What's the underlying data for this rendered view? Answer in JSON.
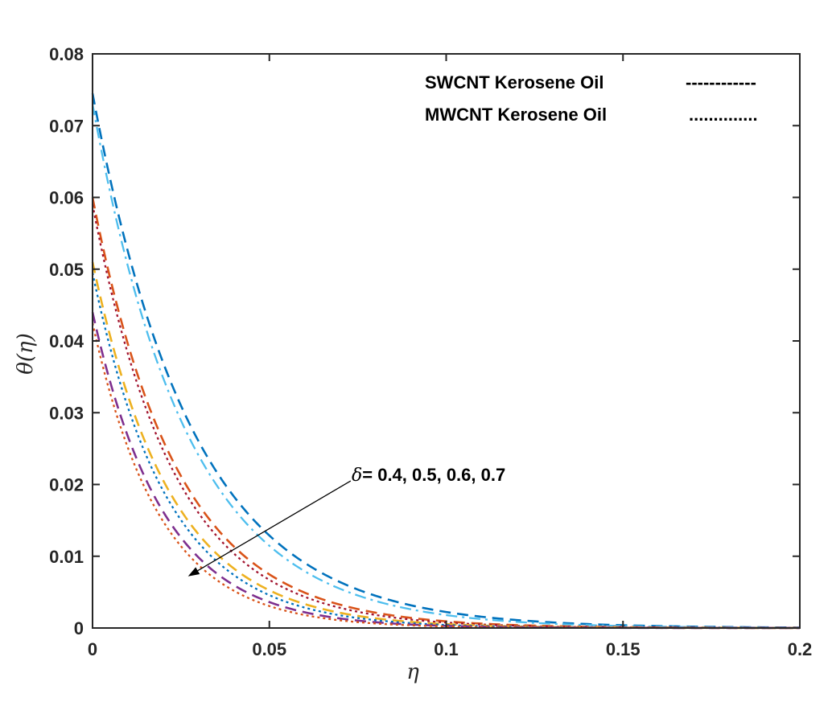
{
  "chart_data": {
    "type": "line",
    "title": "",
    "xlabel": "η",
    "ylabel": "θ(η)",
    "xlim": [
      0,
      0.2
    ],
    "ylim": [
      0,
      0.08
    ],
    "xticks": [
      0,
      0.05,
      0.1,
      0.15,
      0.2
    ],
    "xtick_labels": [
      "0",
      "0.05",
      "0.1",
      "0.15",
      "0.2"
    ],
    "yticks": [
      0,
      0.01,
      0.02,
      0.03,
      0.04,
      0.05,
      0.06,
      0.07,
      0.08
    ],
    "ytick_labels": [
      "0",
      "0.01",
      "0.02",
      "0.03",
      "0.04",
      "0.05",
      "0.06",
      "0.07",
      "0.08"
    ],
    "grid": false,
    "legend_position": "top-right",
    "legend": [
      {
        "label": "SWCNT Kerosene Oil",
        "sample": "------------",
        "style": "dashed"
      },
      {
        "label": "MWCNT Kerosene Oil",
        "sample": "..............",
        "style": "dotted"
      }
    ],
    "annotation": {
      "symbol": "δ",
      "text": "= 0.4, 0.5, 0.6, 0.7",
      "arrow_from": [
        0.073,
        0.0205
      ],
      "arrow_to": [
        0.027,
        0.0072
      ]
    },
    "series": [
      {
        "name": "SWCNT δ=0.4",
        "style": "dashed",
        "color": "#0072BD",
        "theta0": 0.0745,
        "decay_length": 0.0285
      },
      {
        "name": "MWCNT δ=0.4",
        "style": "dashdot",
        "color": "#4DBEEE",
        "theta0": 0.073,
        "decay_length": 0.027
      },
      {
        "name": "SWCNT δ=0.5",
        "style": "dashed",
        "color": "#D95319",
        "theta0": 0.06,
        "decay_length": 0.024
      },
      {
        "name": "MWCNT δ=0.5",
        "style": "dotted",
        "color": "#A2142F",
        "theta0": 0.059,
        "decay_length": 0.023
      },
      {
        "name": "SWCNT δ=0.6",
        "style": "dashed",
        "color": "#EDB120",
        "theta0": 0.051,
        "decay_length": 0.022
      },
      {
        "name": "MWCNT δ=0.6",
        "style": "dotted",
        "color": "#0072BD",
        "theta0": 0.0495,
        "decay_length": 0.021
      },
      {
        "name": "SWCNT δ=0.7",
        "style": "dashed",
        "color": "#7E2F8E",
        "theta0": 0.044,
        "decay_length": 0.02
      },
      {
        "name": "MWCNT δ=0.7",
        "style": "dotted",
        "color": "#D95319",
        "theta0": 0.0425,
        "decay_length": 0.019
      }
    ]
  }
}
